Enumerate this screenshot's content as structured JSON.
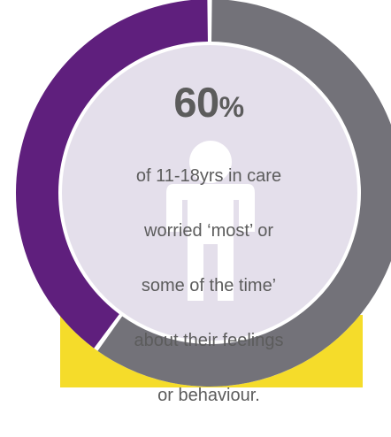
{
  "chart_data": {
    "type": "pie",
    "style": "donut",
    "value": 60,
    "unit": "%",
    "slices": [
      {
        "value": 60,
        "color": "#737279"
      },
      {
        "value": 40,
        "color": "#5f1f7d"
      }
    ],
    "start": "top",
    "direction": "clockwise"
  },
  "stat": {
    "number": "60",
    "symbol": "%"
  },
  "description": {
    "lines": [
      "of 11-18yrs in care",
      "worried ‘most’ or",
      "some of the time’",
      "about their feelings",
      "or behaviour."
    ]
  },
  "colors": {
    "inner_fill": "#e4dfeb",
    "figure_white": "#ffffff",
    "base_yellow": "#f5dc2a",
    "text": "#5c5c5c"
  },
  "icons": {
    "background_figure": "person-figure-icon"
  }
}
